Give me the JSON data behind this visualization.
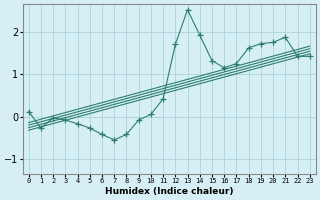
{
  "xlabel": "Humidex (Indice chaleur)",
  "ylabel": "",
  "bg_color": "#d6eff5",
  "line_color": "#2d7d6e",
  "grid_color": "#b0d8e0",
  "xlim": [
    -0.5,
    23.5
  ],
  "ylim": [
    -1.35,
    2.65
  ],
  "xticks": [
    0,
    1,
    2,
    3,
    4,
    5,
    6,
    7,
    8,
    9,
    10,
    11,
    12,
    13,
    14,
    15,
    16,
    17,
    18,
    19,
    20,
    21,
    22,
    23
  ],
  "yticks": [
    -1,
    0,
    1,
    2
  ],
  "scatter_x": [
    0,
    1,
    2,
    3,
    4,
    5,
    6,
    7,
    8,
    9,
    10,
    11,
    12,
    13,
    14,
    15,
    16,
    17,
    18,
    19,
    20,
    21,
    22,
    23
  ],
  "scatter_y": [
    0.12,
    -0.27,
    -0.03,
    -0.08,
    -0.17,
    -0.27,
    -0.42,
    -0.55,
    -0.42,
    -0.08,
    0.05,
    0.42,
    1.7,
    2.52,
    1.92,
    1.32,
    1.15,
    1.25,
    1.62,
    1.72,
    1.75,
    1.87,
    1.42,
    1.42
  ],
  "reg_lines": [
    {
      "x": [
        0,
        23
      ],
      "y": [
        -0.32,
        1.48
      ]
    },
    {
      "x": [
        0,
        23
      ],
      "y": [
        -0.26,
        1.54
      ]
    },
    {
      "x": [
        0,
        23
      ],
      "y": [
        -0.2,
        1.6
      ]
    },
    {
      "x": [
        0,
        23
      ],
      "y": [
        -0.14,
        1.66
      ]
    }
  ]
}
